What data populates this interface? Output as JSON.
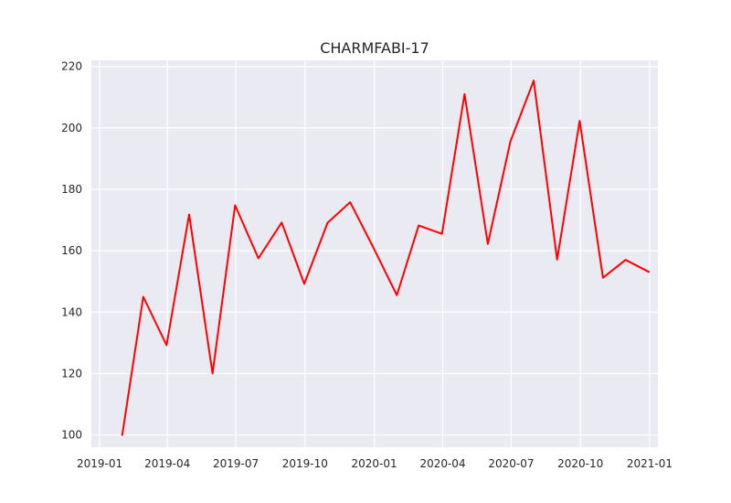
{
  "chart_data": {
    "type": "line",
    "title": "CHARMFABI-17",
    "xlabel": "",
    "ylabel": "",
    "xlim": [
      "2018-12-21",
      "2021-01-12"
    ],
    "ylim": [
      96,
      222
    ],
    "grid": true,
    "legend": "none",
    "x_ticks": [
      "2019-01",
      "2019-04",
      "2019-07",
      "2019-10",
      "2020-01",
      "2020-04",
      "2020-07",
      "2020-10",
      "2021-01"
    ],
    "y_ticks": [
      100,
      120,
      140,
      160,
      180,
      200,
      220
    ],
    "series": [
      {
        "color": "#ff0000",
        "x": [
          "2019-01-31",
          "2019-02-28",
          "2019-03-31",
          "2019-04-30",
          "2019-05-31",
          "2019-06-30",
          "2019-07-31",
          "2019-08-31",
          "2019-09-30",
          "2019-10-31",
          "2019-11-30",
          "2019-12-31",
          "2020-01-31",
          "2020-02-29",
          "2020-03-31",
          "2020-04-30",
          "2020-05-31",
          "2020-06-30",
          "2020-07-31",
          "2020-08-31",
          "2020-09-30",
          "2020-10-31",
          "2020-11-30",
          "2020-12-31"
        ],
        "values": [
          100,
          145,
          129.2,
          171.8,
          120,
          174.8,
          157.5,
          169.2,
          149.2,
          169.1,
          175.8,
          160.9,
          145.5,
          168.2,
          165.5,
          211,
          162.2,
          195.6,
          215.4,
          157.1,
          202.3,
          151.2,
          157,
          153.1
        ]
      }
    ],
    "colors": {
      "axes_bg": "#eaeaf2",
      "grid": "#ffffff",
      "text": "#262626"
    }
  }
}
